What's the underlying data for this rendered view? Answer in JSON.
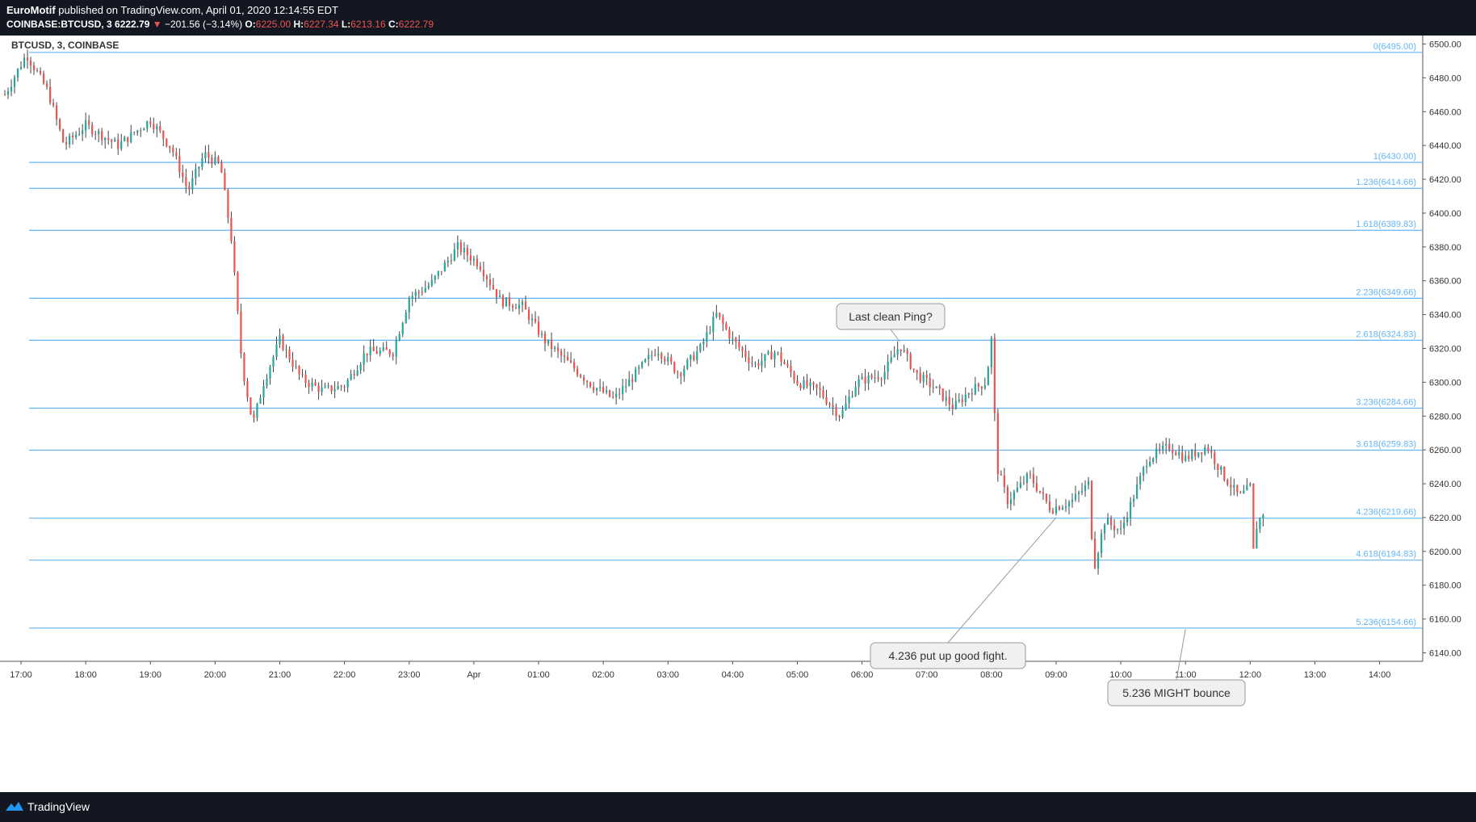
{
  "header": {
    "author": "EuroMotif",
    "published_text": "published on TradingView.com, April 01, 2020 12:14:55 EDT",
    "symbol_line": "COINBASE:BTCUSD, 3",
    "last_price": "6222.79",
    "change_arrow": "▼",
    "change": "−201.56 (−3.14%)",
    "o_label": "O:",
    "o_value": "6225.00",
    "h_label": "H:",
    "h_value": "6227.34",
    "l_label": "L:",
    "l_value": "6213.16",
    "c_label": "C:",
    "c_value": "6222.79"
  },
  "footer": {
    "brand": "TradingView",
    "logo_icon": "tradingview-logo-icon"
  },
  "colors": {
    "up": "#26a69a",
    "down": "#ef5350",
    "fib": "#64b5f6",
    "wick": "#444"
  },
  "chart_data": {
    "type": "candlestick",
    "title": "BTCUSD, 3, COINBASE",
    "ylim": [
      6135,
      6505
    ],
    "y_ticks": [
      "6500.00",
      "6480.00",
      "6460.00",
      "6440.00",
      "6420.00",
      "6400.00",
      "6380.00",
      "6360.00",
      "6340.00",
      "6320.00",
      "6300.00",
      "6280.00",
      "6260.00",
      "6240.00",
      "6220.00",
      "6200.00",
      "6180.00",
      "6160.00",
      "6140.00"
    ],
    "x_ticks": [
      "17:00",
      "18:00",
      "19:00",
      "20:00",
      "21:00",
      "22:00",
      "23:00",
      "Apr",
      "01:00",
      "02:00",
      "03:00",
      "04:00",
      "05:00",
      "06:00",
      "07:00",
      "08:00",
      "09:00",
      "10:00",
      "11:00",
      "12:00",
      "13:00",
      "14:00"
    ],
    "x_range": [
      "16:45",
      "14:40"
    ],
    "fib_levels": [
      {
        "label": "0(6495.00)",
        "value": 6495.0
      },
      {
        "label": "1(6430.00)",
        "value": 6430.0
      },
      {
        "label": "1.236(6414.66)",
        "value": 6414.66
      },
      {
        "label": "1.618(6389.83)",
        "value": 6389.83
      },
      {
        "label": "2.236(6349.66)",
        "value": 6349.66
      },
      {
        "label": "2.618(6324.83)",
        "value": 6324.83
      },
      {
        "label": "3.236(6284.66)",
        "value": 6284.66
      },
      {
        "label": "3.618(6259.83)",
        "value": 6259.83
      },
      {
        "label": "4.236(6219.66)",
        "value": 6219.66
      },
      {
        "label": "4.618(6194.83)",
        "value": 6194.83
      },
      {
        "label": "5.236(6154.66)",
        "value": 6154.66
      }
    ],
    "path": [
      [
        "16:45",
        6470
      ],
      [
        "17:05",
        6494
      ],
      [
        "17:25",
        6472
      ],
      [
        "17:40",
        6440
      ],
      [
        "18:00",
        6452
      ],
      [
        "18:30",
        6440
      ],
      [
        "19:00",
        6455
      ],
      [
        "19:20",
        6438
      ],
      [
        "19:35",
        6413
      ],
      [
        "19:50",
        6435
      ],
      [
        "20:05",
        6428
      ],
      [
        "20:15",
        6385
      ],
      [
        "20:25",
        6310
      ],
      [
        "20:35",
        6275
      ],
      [
        "20:45",
        6300
      ],
      [
        "21:00",
        6325
      ],
      [
        "21:20",
        6302
      ],
      [
        "21:40",
        6295
      ],
      [
        "22:00",
        6298
      ],
      [
        "22:20",
        6318
      ],
      [
        "22:45",
        6318
      ],
      [
        "23:00",
        6350
      ],
      [
        "23:20",
        6358
      ],
      [
        "23:45",
        6380
      ],
      [
        "00:05",
        6370
      ],
      [
        "00:25",
        6348
      ],
      [
        "00:45",
        6345
      ],
      [
        "01:05",
        6325
      ],
      [
        "01:30",
        6310
      ],
      [
        "01:50",
        6298
      ],
      [
        "02:10",
        6290
      ],
      [
        "02:30",
        6305
      ],
      [
        "02:50",
        6320
      ],
      [
        "03:10",
        6305
      ],
      [
        "03:30",
        6320
      ],
      [
        "03:45",
        6340
      ],
      [
        "04:00",
        6325
      ],
      [
        "04:20",
        6310
      ],
      [
        "04:40",
        6318
      ],
      [
        "05:00",
        6300
      ],
      [
        "05:20",
        6295
      ],
      [
        "05:40",
        6280
      ],
      [
        "05:55",
        6300
      ],
      [
        "06:20",
        6305
      ],
      [
        "06:35",
        6322
      ],
      [
        "06:50",
        6305
      ],
      [
        "07:10",
        6295
      ],
      [
        "07:25",
        6285
      ],
      [
        "07:40",
        6295
      ],
      [
        "07:55",
        6300
      ],
      [
        "08:00",
        6325
      ],
      [
        "08:05",
        6250
      ],
      [
        "08:15",
        6230
      ],
      [
        "08:35",
        6245
      ],
      [
        "08:55",
        6225
      ],
      [
        "09:15",
        6230
      ],
      [
        "09:30",
        6240
      ],
      [
        "09:35",
        6190
      ],
      [
        "09:45",
        6218
      ],
      [
        "10:00",
        6212
      ],
      [
        "10:15",
        6238
      ],
      [
        "10:25",
        6255
      ],
      [
        "10:45",
        6262
      ],
      [
        "11:00",
        6255
      ],
      [
        "11:20",
        6262
      ],
      [
        "11:35",
        6245
      ],
      [
        "11:50",
        6232
      ],
      [
        "12:00",
        6238
      ],
      [
        "12:03",
        6200
      ],
      [
        "12:06",
        6215
      ],
      [
        "12:12",
        6222.79
      ]
    ],
    "annotations": [
      {
        "text": "Last clean Ping?",
        "at": [
          "06:35",
          6324
        ]
      },
      {
        "text": "4.236 put up good fight.",
        "at": [
          "09:00",
          6220
        ]
      },
      {
        "text": "5.236 MIGHT bounce",
        "at": [
          "11:00",
          6154
        ]
      }
    ]
  }
}
